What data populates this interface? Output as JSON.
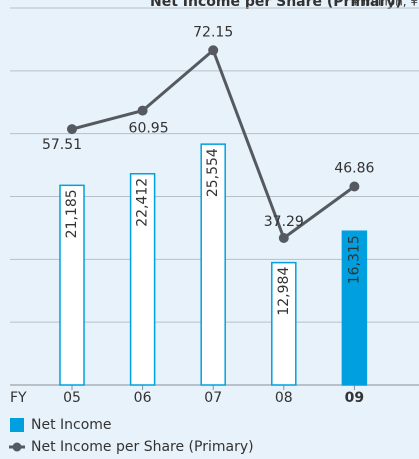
{
  "chart_data": {
    "type": "bar-line",
    "title": "Net Income per Share (Primary)",
    "unit": "¥ million, ¥",
    "x_prefix": "FY",
    "categories": [
      "05",
      "06",
      "07",
      "08",
      "09"
    ],
    "series": [
      {
        "name": "Net Income",
        "type": "bar",
        "color": "#00a0e0",
        "values": [
          21185,
          22412,
          25554,
          12984,
          16315
        ],
        "value_labels": [
          "21,185",
          "22,412",
          "25,554",
          "12,984",
          "16,315"
        ]
      },
      {
        "name": "Net Income per Share (Primary)",
        "type": "line",
        "axis": "y2",
        "color": "#555a60",
        "values": [
          57.51,
          60.95,
          72.15,
          37.29,
          46.86
        ]
      }
    ],
    "ylim": [
      0,
      40000
    ],
    "y2lim": [
      10,
      80
    ],
    "highlight": 4
  }
}
